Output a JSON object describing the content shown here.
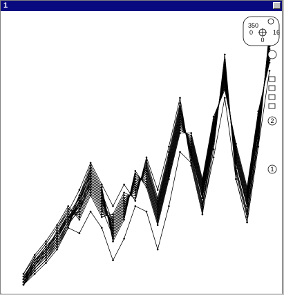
{
  "window": {
    "title": "1"
  },
  "widget": {
    "top": "350",
    "left": "0",
    "right": "16",
    "bottom": "0"
  },
  "badges": [
    "2",
    "1"
  ],
  "chart_data": {
    "type": "line",
    "title": "",
    "xlabel": "",
    "ylabel": "",
    "x": [
      0,
      1,
      2,
      3,
      4,
      5,
      6,
      7,
      8,
      9,
      10,
      11,
      12,
      13,
      14,
      15,
      16,
      17,
      18,
      19,
      20,
      21,
      22
    ],
    "xlim": [
      0,
      22
    ],
    "ylim": [
      0,
      100
    ],
    "grid": false,
    "legend": "none",
    "series": [
      {
        "values": [
          2,
          8,
          12,
          18,
          25,
          30,
          40,
          32,
          22,
          30,
          38,
          42,
          28,
          45,
          62,
          52,
          35,
          58,
          78,
          48,
          32,
          60,
          88
        ]
      },
      {
        "values": [
          3,
          9,
          14,
          19,
          26,
          28,
          38,
          30,
          24,
          32,
          36,
          44,
          30,
          47,
          64,
          50,
          33,
          56,
          80,
          46,
          30,
          58,
          90
        ]
      },
      {
        "values": [
          1,
          7,
          11,
          17,
          24,
          31,
          42,
          34,
          20,
          28,
          40,
          40,
          26,
          43,
          60,
          54,
          37,
          60,
          76,
          50,
          34,
          62,
          86
        ]
      },
      {
        "values": [
          4,
          10,
          15,
          20,
          27,
          27,
          36,
          28,
          25,
          33,
          35,
          45,
          31,
          48,
          66,
          49,
          31,
          55,
          82,
          44,
          28,
          56,
          92
        ]
      },
      {
        "values": [
          2,
          6,
          10,
          16,
          23,
          32,
          44,
          36,
          18,
          26,
          42,
          38,
          24,
          41,
          58,
          56,
          39,
          62,
          74,
          52,
          36,
          64,
          84
        ]
      },
      {
        "values": [
          3,
          8,
          13,
          21,
          28,
          29,
          39,
          31,
          23,
          31,
          37,
          43,
          29,
          46,
          63,
          51,
          34,
          57,
          79,
          47,
          31,
          59,
          89
        ]
      },
      {
        "values": [
          1,
          9,
          12,
          18,
          25,
          33,
          41,
          33,
          21,
          29,
          39,
          41,
          27,
          44,
          61,
          53,
          36,
          59,
          77,
          49,
          33,
          61,
          87
        ]
      },
      {
        "values": [
          5,
          11,
          16,
          22,
          29,
          26,
          35,
          27,
          26,
          34,
          34,
          46,
          32,
          49,
          67,
          48,
          30,
          54,
          83,
          43,
          27,
          55,
          93
        ]
      },
      {
        "values": [
          2,
          7,
          11,
          17,
          24,
          30,
          37,
          29,
          19,
          27,
          41,
          39,
          25,
          42,
          59,
          55,
          38,
          61,
          75,
          51,
          35,
          63,
          85
        ]
      },
      {
        "values": [
          3,
          10,
          14,
          20,
          26,
          31,
          43,
          35,
          24,
          32,
          36,
          44,
          30,
          47,
          65,
          50,
          33,
          56,
          81,
          46,
          30,
          58,
          91
        ]
      },
      {
        "values": [
          1,
          5,
          9,
          14,
          22,
          34,
          45,
          37,
          17,
          25,
          43,
          37,
          23,
          40,
          57,
          57,
          40,
          63,
          73,
          53,
          37,
          65,
          83
        ]
      },
      {
        "values": [
          4,
          9,
          15,
          19,
          27,
          28,
          40,
          32,
          22,
          30,
          38,
          42,
          28,
          45,
          62,
          52,
          35,
          58,
          78,
          48,
          32,
          60,
          88
        ]
      },
      {
        "values": [
          2,
          8,
          13,
          18,
          25,
          31,
          38,
          30,
          23,
          31,
          37,
          43,
          29,
          46,
          63,
          51,
          34,
          57,
          79,
          47,
          31,
          59,
          89
        ]
      },
      {
        "values": [
          3,
          7,
          12,
          17,
          24,
          32,
          42,
          34,
          20,
          28,
          40,
          40,
          26,
          43,
          60,
          54,
          37,
          60,
          76,
          50,
          34,
          62,
          86
        ]
      },
      {
        "values": [
          1,
          6,
          10,
          15,
          23,
          29,
          39,
          31,
          25,
          33,
          35,
          45,
          31,
          48,
          66,
          49,
          31,
          55,
          82,
          44,
          28,
          56,
          92
        ]
      },
      {
        "values": [
          5,
          12,
          17,
          23,
          30,
          25,
          34,
          26,
          27,
          35,
          33,
          47,
          33,
          50,
          68,
          47,
          29,
          53,
          84,
          42,
          26,
          54,
          94
        ]
      },
      {
        "values": [
          2,
          9,
          12,
          18,
          26,
          30,
          41,
          33,
          21,
          29,
          39,
          41,
          27,
          44,
          61,
          53,
          36,
          59,
          77,
          49,
          33,
          61,
          87
        ]
      },
      {
        "values": [
          3,
          8,
          14,
          20,
          27,
          33,
          44,
          36,
          19,
          27,
          41,
          39,
          25,
          42,
          59,
          55,
          38,
          61,
          75,
          51,
          35,
          63,
          85
        ]
      },
      {
        "values": [
          1,
          7,
          11,
          16,
          24,
          28,
          37,
          29,
          24,
          32,
          36,
          44,
          30,
          47,
          64,
          50,
          33,
          56,
          80,
          46,
          30,
          58,
          90
        ]
      },
      {
        "values": [
          4,
          10,
          13,
          19,
          25,
          34,
          43,
          35,
          18,
          26,
          42,
          38,
          24,
          41,
          58,
          56,
          39,
          62,
          74,
          52,
          36,
          64,
          84
        ]
      },
      {
        "values": [
          2,
          6,
          10,
          15,
          22,
          20,
          28,
          22,
          10,
          18,
          30,
          28,
          14,
          30,
          50,
          46,
          28,
          48,
          70,
          40,
          24,
          52,
          80
        ]
      },
      {
        "values": [
          3,
          11,
          16,
          22,
          28,
          36,
          46,
          38,
          30,
          38,
          32,
          48,
          36,
          52,
          70,
          45,
          27,
          51,
          86,
          40,
          24,
          52,
          95
        ]
      }
    ]
  }
}
